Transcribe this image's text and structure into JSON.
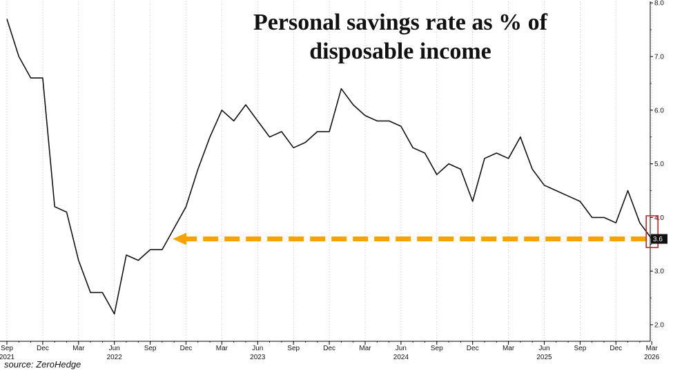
{
  "chart_data": {
    "type": "line",
    "title": "Personal savings rate as % of disposable income",
    "source": "source: ZeroHedge",
    "ylim": [
      2.0,
      8.0
    ],
    "y_ticks": [
      "2.0",
      "3.0",
      "4.0",
      "5.0",
      "6.0",
      "7.0",
      "8.0"
    ],
    "y_axis_position": "right",
    "grid": "vertical dotted",
    "x_tick_labels": [
      {
        "date": "2021-09",
        "month": "Sep",
        "year": "2021"
      },
      {
        "date": "2021-12",
        "month": "Dec",
        "year": ""
      },
      {
        "date": "2022-03",
        "month": "Mar",
        "year": ""
      },
      {
        "date": "2022-06",
        "month": "Jun",
        "year": "2022"
      },
      {
        "date": "2022-09",
        "month": "Sep",
        "year": ""
      },
      {
        "date": "2022-12",
        "month": "Dec",
        "year": ""
      },
      {
        "date": "2023-03",
        "month": "Mar",
        "year": ""
      },
      {
        "date": "2023-06",
        "month": "Jun",
        "year": "2023"
      },
      {
        "date": "2023-09",
        "month": "Sep",
        "year": ""
      },
      {
        "date": "2023-12",
        "month": "Dec",
        "year": ""
      },
      {
        "date": "2024-03",
        "month": "Mar",
        "year": ""
      },
      {
        "date": "2024-06",
        "month": "Jun",
        "year": "2024"
      },
      {
        "date": "2024-09",
        "month": "Sep",
        "year": ""
      },
      {
        "date": "2024-12",
        "month": "Dec",
        "year": ""
      },
      {
        "date": "2025-03",
        "month": "Mar",
        "year": ""
      },
      {
        "date": "2025-06",
        "month": "Jun",
        "year": "2025"
      },
      {
        "date": "2025-09",
        "month": "Sep",
        "year": ""
      },
      {
        "date": "2025-12",
        "month": "Dec",
        "year": ""
      },
      {
        "date": "2026-03",
        "month": "Mar",
        "year": "2026"
      }
    ],
    "series": [
      {
        "x": [
          "2021-09",
          "2021-10",
          "2021-11",
          "2021-12",
          "2022-01",
          "2022-02",
          "2022-03",
          "2022-04",
          "2022-05",
          "2022-06",
          "2022-07",
          "2022-08",
          "2022-09",
          "2022-10",
          "2022-11",
          "2022-12",
          "2023-01",
          "2023-02",
          "2023-03",
          "2023-04",
          "2023-05",
          "2023-06",
          "2023-07",
          "2023-08",
          "2023-09",
          "2023-10",
          "2023-11",
          "2023-12",
          "2024-01",
          "2024-02",
          "2024-03",
          "2024-04",
          "2024-05",
          "2024-06",
          "2024-07",
          "2024-08",
          "2024-09",
          "2024-10",
          "2024-11",
          "2024-12",
          "2025-01",
          "2025-02",
          "2025-03",
          "2025-04",
          "2025-05",
          "2025-06",
          "2025-07",
          "2025-08",
          "2025-09",
          "2025-10",
          "2025-11",
          "2025-12",
          "2026-01",
          "2026-02",
          "2026-03"
        ],
        "values": [
          7.7,
          7.0,
          6.6,
          6.6,
          4.2,
          4.1,
          3.2,
          2.6,
          2.6,
          2.2,
          3.3,
          3.2,
          3.4,
          3.4,
          3.8,
          4.2,
          4.9,
          5.5,
          6.0,
          5.8,
          6.1,
          5.8,
          5.5,
          5.6,
          5.3,
          5.4,
          5.6,
          5.6,
          6.4,
          6.1,
          5.9,
          5.8,
          5.8,
          5.7,
          5.3,
          5.2,
          4.8,
          5.0,
          4.9,
          4.3,
          5.1,
          5.2,
          5.1,
          5.5,
          4.9,
          4.6,
          4.5,
          4.4,
          4.3,
          4.0,
          4.0,
          3.9,
          4.5,
          3.9,
          3.6
        ]
      }
    ],
    "last_value_label": "3.6",
    "annotations": [
      {
        "type": "dashed-arrow",
        "color": "#F5A300",
        "level": 3.6,
        "from": "2026-03",
        "to": "2022-11"
      },
      {
        "type": "highlight-box",
        "color": "#D92020",
        "around": "2026-03"
      }
    ]
  }
}
